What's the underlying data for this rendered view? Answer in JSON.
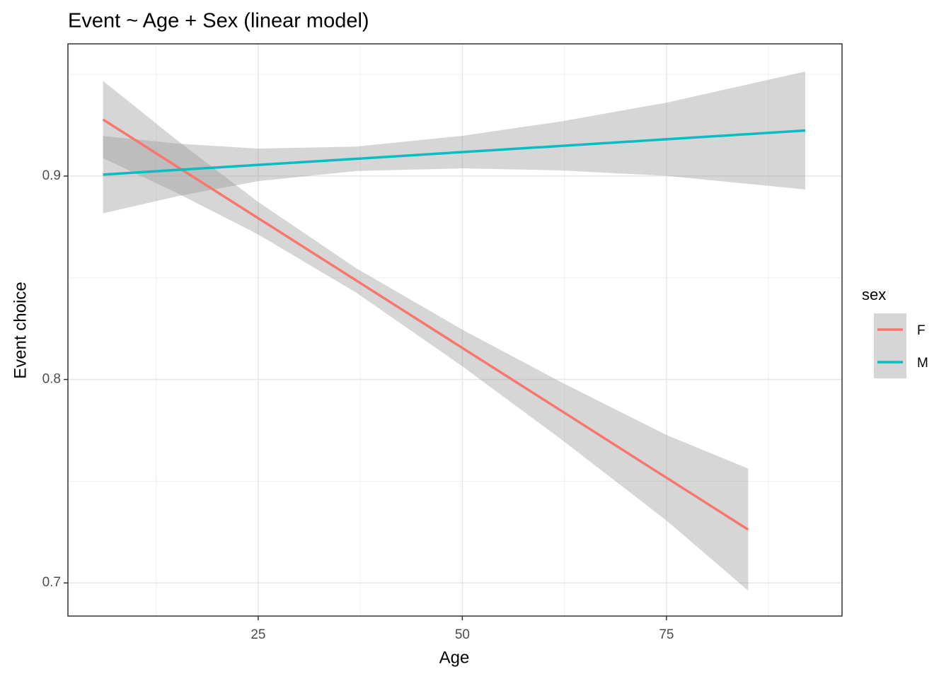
{
  "chart_data": {
    "type": "line",
    "title": "Event ~ Age + Sex (linear model)",
    "x_label": "Age",
    "y_label": "Event choice",
    "legend_title": "sex",
    "xlim": [
      1.7,
      96.5
    ],
    "ylim": [
      0.6837,
      0.965
    ],
    "xticks": [
      25,
      50,
      75
    ],
    "yticks": [
      0.7,
      0.8,
      0.9
    ],
    "grid": true,
    "legend": "right",
    "ribbon_color": "#999999",
    "series": [
      {
        "name": "F",
        "color": "#F8766D",
        "x": [
          6,
          15,
          25,
          37,
          50,
          62,
          75,
          85
        ],
        "values": [
          0.9278,
          0.9048,
          0.8793,
          0.8487,
          0.8155,
          0.7849,
          0.7517,
          0.7262
        ],
        "lower": [
          0.9088,
          0.8918,
          0.8713,
          0.8427,
          0.8065,
          0.7709,
          0.7307,
          0.6962
        ],
        "upper": [
          0.9468,
          0.9178,
          0.8873,
          0.8547,
          0.8245,
          0.7989,
          0.7727,
          0.7562
        ]
      },
      {
        "name": "M",
        "color": "#00BFC4",
        "x": [
          6,
          15,
          25,
          37,
          50,
          62,
          75,
          92
        ],
        "values": [
          0.9007,
          0.903,
          0.9055,
          0.9085,
          0.9118,
          0.9148,
          0.9181,
          0.9224
        ],
        "lower": [
          0.8817,
          0.89,
          0.8975,
          0.9025,
          0.9038,
          0.9028,
          0.9001,
          0.8934
        ],
        "upper": [
          0.9197,
          0.916,
          0.9135,
          0.9145,
          0.9198,
          0.9268,
          0.9361,
          0.9514
        ]
      }
    ]
  }
}
